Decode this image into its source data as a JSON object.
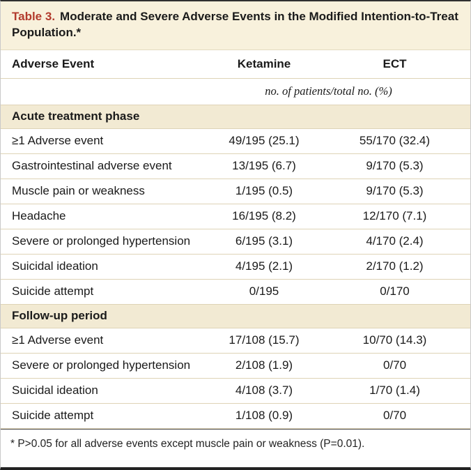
{
  "table": {
    "label": "Table 3.",
    "title": "Moderate and Severe Adverse Events in the Modified Intention-to-Treat Population.*",
    "columns": [
      "Adverse Event",
      "Ketamine",
      "ECT"
    ],
    "units": "no. of patients/total no. (%)",
    "sections": [
      {
        "header": "Acute treatment phase",
        "rows": [
          {
            "label": "≥1 Adverse event",
            "ketamine": "49/195 (25.1)",
            "ect": "55/170 (32.4)"
          },
          {
            "label": "Gastrointestinal adverse event",
            "ketamine": "13/195 (6.7)",
            "ect": "9/170 (5.3)"
          },
          {
            "label": "Muscle pain or weakness",
            "ketamine": "1/195 (0.5)",
            "ect": "9/170 (5.3)"
          },
          {
            "label": "Headache",
            "ketamine": "16/195 (8.2)",
            "ect": "12/170 (7.1)"
          },
          {
            "label": "Severe or prolonged hypertension",
            "ketamine": "6/195 (3.1)",
            "ect": "4/170 (2.4)"
          },
          {
            "label": "Suicidal ideation",
            "ketamine": "4/195 (2.1)",
            "ect": "2/170 (1.2)"
          },
          {
            "label": "Suicide attempt",
            "ketamine": "0/195",
            "ect": "0/170"
          }
        ]
      },
      {
        "header": "Follow-up period",
        "rows": [
          {
            "label": "≥1 Adverse event",
            "ketamine": "17/108 (15.7)",
            "ect": "10/70 (14.3)"
          },
          {
            "label": "Severe or prolonged hypertension",
            "ketamine": "2/108 (1.9)",
            "ect": "0/70"
          },
          {
            "label": "Suicidal ideation",
            "ketamine": "4/108 (3.7)",
            "ect": "1/70 (1.4)"
          },
          {
            "label": "Suicide attempt",
            "ketamine": "1/108 (0.9)",
            "ect": "0/70"
          }
        ]
      }
    ],
    "footnote": "* P>0.05 for all adverse events except muscle pain or weakness (P=0.01)."
  },
  "colors": {
    "accent_red": "#b23b2d",
    "title_background": "#f8f1dc",
    "section_background": "#f2ead3",
    "divider": "#ded3b6"
  }
}
